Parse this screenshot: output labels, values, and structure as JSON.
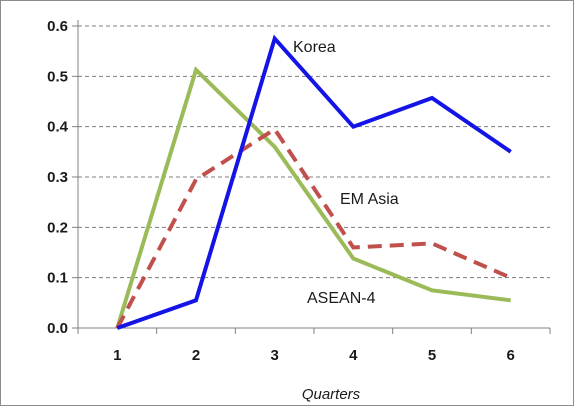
{
  "chart_data": {
    "type": "line",
    "xlabel": "Quarters",
    "ylabel": "",
    "title": "",
    "x": [
      1,
      2,
      3,
      4,
      5,
      6
    ],
    "xlim": [
      0.5,
      6.5
    ],
    "ylim": [
      0,
      0.6
    ],
    "yticks": [
      "0.0",
      "0.1",
      "0.2",
      "0.3",
      "0.4",
      "0.5",
      "0.6"
    ],
    "ytick_values": [
      0,
      0.1,
      0.2,
      0.3,
      0.4,
      0.5,
      0.6
    ],
    "grid": "horizontal dashed",
    "series": [
      {
        "name": "Korea",
        "values": [
          0.0,
          0.055,
          0.575,
          0.4,
          0.457,
          0.35
        ],
        "color": "#1414e6",
        "style": "solid"
      },
      {
        "name": "EM Asia",
        "values": [
          0.0,
          0.295,
          0.395,
          0.16,
          0.168,
          0.1
        ],
        "color": "#c0504d",
        "style": "dashed"
      },
      {
        "name": "ASEAN-4",
        "values": [
          0.0,
          0.513,
          0.36,
          0.138,
          0.075,
          0.055
        ],
        "color": "#9bbb59",
        "style": "solid"
      }
    ]
  }
}
